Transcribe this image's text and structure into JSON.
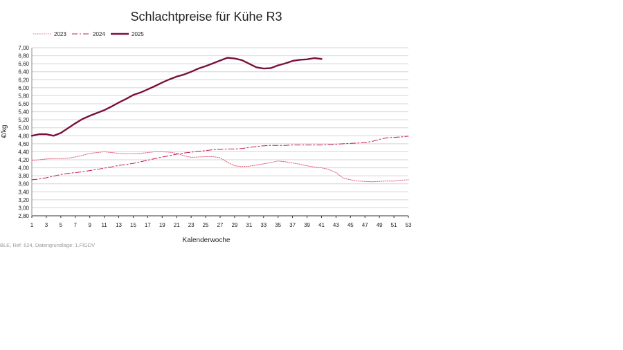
{
  "chart_data": {
    "type": "line",
    "title": "Schlachtpreise für Kühe R3",
    "xlabel": "Kalenderwoche",
    "ylabel": "€/kg",
    "source": "BLE, Ref. 624, Datengrundlage: 1.FlGDV",
    "xlim": [
      1,
      53
    ],
    "ylim": [
      2.8,
      7.0
    ],
    "ytick_step": 0.2,
    "x_ticks": [
      1,
      3,
      5,
      7,
      9,
      11,
      13,
      15,
      17,
      19,
      21,
      23,
      25,
      27,
      29,
      31,
      33,
      35,
      37,
      39,
      41,
      43,
      45,
      47,
      49,
      51,
      53
    ],
    "decimal_separator": ",",
    "grid": "horizontal",
    "legend_position": "top-left",
    "series": [
      {
        "name": "2023",
        "style": "dotted",
        "color": "#e0607a",
        "x": [
          1,
          2,
          3,
          4,
          5,
          6,
          7,
          8,
          9,
          10,
          11,
          12,
          13,
          14,
          15,
          16,
          17,
          18,
          19,
          20,
          21,
          22,
          23,
          24,
          25,
          26,
          27,
          28,
          29,
          30,
          31,
          32,
          33,
          34,
          35,
          36,
          37,
          38,
          39,
          40,
          41,
          42,
          43,
          44,
          45,
          46,
          47,
          48,
          49,
          50,
          51,
          52,
          53
        ],
        "values": [
          4.18,
          4.2,
          4.22,
          4.23,
          4.23,
          4.24,
          4.27,
          4.31,
          4.36,
          4.38,
          4.4,
          4.38,
          4.36,
          4.35,
          4.35,
          4.36,
          4.38,
          4.4,
          4.4,
          4.39,
          4.36,
          4.3,
          4.26,
          4.27,
          4.28,
          4.28,
          4.25,
          4.14,
          4.05,
          4.03,
          4.04,
          4.07,
          4.1,
          4.13,
          4.17,
          4.15,
          4.12,
          4.09,
          4.05,
          4.02,
          4.0,
          3.96,
          3.88,
          3.74,
          3.7,
          3.67,
          3.66,
          3.65,
          3.66,
          3.67,
          3.67,
          3.69,
          3.7
        ]
      },
      {
        "name": "2024",
        "style": "dashdot",
        "color": "#c2185b",
        "x": [
          1,
          2,
          3,
          4,
          5,
          6,
          7,
          8,
          9,
          10,
          11,
          12,
          13,
          14,
          15,
          16,
          17,
          18,
          19,
          20,
          21,
          22,
          23,
          24,
          25,
          26,
          27,
          28,
          29,
          30,
          31,
          32,
          33,
          34,
          35,
          36,
          37,
          38,
          39,
          40,
          41,
          42,
          43,
          44,
          45,
          46,
          47,
          48,
          49,
          50,
          51,
          52,
          53
        ],
        "values": [
          3.7,
          3.72,
          3.75,
          3.79,
          3.83,
          3.86,
          3.88,
          3.9,
          3.93,
          3.96,
          3.99,
          4.02,
          4.06,
          4.08,
          4.11,
          4.15,
          4.19,
          4.23,
          4.27,
          4.3,
          4.34,
          4.37,
          4.39,
          4.41,
          4.43,
          4.45,
          4.46,
          4.47,
          4.47,
          4.48,
          4.51,
          4.53,
          4.55,
          4.56,
          4.56,
          4.56,
          4.57,
          4.57,
          4.57,
          4.57,
          4.57,
          4.58,
          4.59,
          4.6,
          4.61,
          4.62,
          4.63,
          4.66,
          4.71,
          4.75,
          4.76,
          4.77,
          4.79
        ]
      },
      {
        "name": "2025",
        "style": "solid",
        "color": "#7a0f3d",
        "x": [
          1,
          2,
          3,
          4,
          5,
          6,
          7,
          8,
          9,
          10,
          11,
          12,
          13,
          14,
          15,
          16,
          17,
          18,
          19,
          20,
          21,
          22,
          23,
          24,
          25,
          26,
          27,
          28,
          29,
          30,
          31,
          32,
          33,
          34,
          35,
          36,
          37,
          38,
          39,
          40,
          41
        ],
        "values": [
          4.8,
          4.84,
          4.84,
          4.8,
          4.87,
          4.99,
          5.11,
          5.22,
          5.3,
          5.37,
          5.44,
          5.53,
          5.63,
          5.72,
          5.82,
          5.88,
          5.96,
          6.04,
          6.13,
          6.21,
          6.28,
          6.33,
          6.4,
          6.48,
          6.54,
          6.61,
          6.68,
          6.75,
          6.73,
          6.69,
          6.6,
          6.51,
          6.48,
          6.49,
          6.56,
          6.61,
          6.67,
          6.7,
          6.71,
          6.74,
          6.72
        ]
      }
    ]
  }
}
